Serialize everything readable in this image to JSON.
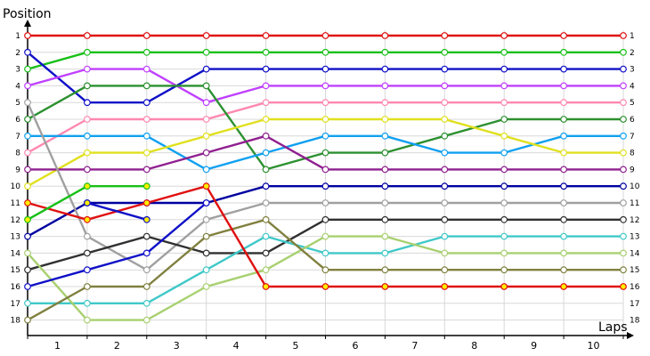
{
  "chart_data": {
    "type": "line",
    "ylabel": "Position",
    "xlabel": "Laps",
    "x_tick_labels": [
      "1",
      "2",
      "3",
      "4",
      "5",
      "6",
      "7",
      "8",
      "9",
      "10"
    ],
    "x_points": [
      0,
      1,
      2,
      3,
      4,
      5,
      6,
      7,
      8,
      9,
      10
    ],
    "y_ticks": [
      1,
      2,
      3,
      4,
      5,
      6,
      7,
      8,
      9,
      10,
      11,
      12,
      13,
      14,
      15,
      16,
      17,
      18
    ],
    "y_inverted": true,
    "ylim": [
      1,
      18
    ],
    "grid": true,
    "legend": "none",
    "series": [
      {
        "color": "#e01010",
        "point_fill": "#ffffff",
        "values": [
          1,
          1,
          1,
          1,
          1,
          1,
          1,
          1,
          1,
          1,
          1
        ]
      },
      {
        "color": "#18c018",
        "point_fill": "#ffffff",
        "values": [
          3,
          2,
          2,
          2,
          2,
          2,
          2,
          2,
          2,
          2,
          2
        ]
      },
      {
        "color": "#1010c8",
        "point_fill": "#ffffff",
        "values": [
          2,
          5,
          5,
          3,
          3,
          3,
          3,
          3,
          3,
          3,
          3
        ]
      },
      {
        "color": "#c040ff",
        "point_fill": "#ffffff",
        "values": [
          4,
          3,
          3,
          5,
          4,
          4,
          4,
          4,
          4,
          4,
          4
        ]
      },
      {
        "color": "#ff88b0",
        "point_fill": "#ffffff",
        "values": [
          8,
          6,
          6,
          6,
          5,
          5,
          5,
          5,
          5,
          5,
          5
        ]
      },
      {
        "color": "#2c9030",
        "point_fill": "#ffffff",
        "values": [
          6,
          4,
          4,
          4,
          9,
          8,
          8,
          7,
          6,
          6,
          6
        ]
      },
      {
        "color": "#10a0f0",
        "point_fill": "#ffffff",
        "values": [
          7,
          7,
          7,
          9,
          8,
          7,
          7,
          8,
          8,
          7,
          7
        ]
      },
      {
        "color": "#e0e020",
        "point_fill": "#ffffff",
        "values": [
          10,
          8,
          8,
          7,
          6,
          6,
          6,
          6,
          7,
          8,
          8
        ]
      },
      {
        "color": "#902090",
        "point_fill": "#ffffff",
        "values": [
          9,
          9,
          9,
          8,
          7,
          9,
          9,
          9,
          9,
          9,
          9
        ]
      },
      {
        "color": "#0000a0",
        "point_fill": "#ffffff",
        "values": [
          13,
          11,
          11,
          11,
          10,
          10,
          10,
          10,
          10,
          10,
          10
        ]
      },
      {
        "color": "#a0a0a0",
        "point_fill": "#ffffff",
        "values": [
          5,
          13,
          15,
          12,
          11,
          11,
          11,
          11,
          11,
          11,
          11
        ]
      },
      {
        "color": "#303030",
        "point_fill": "#ffffff",
        "values": [
          15,
          14,
          13,
          14,
          14,
          12,
          12,
          12,
          12,
          12,
          12
        ]
      },
      {
        "color": "#40c8c8",
        "point_fill": "#ffffff",
        "values": [
          17,
          17,
          17,
          15,
          13,
          14,
          14,
          13,
          13,
          13,
          13
        ]
      },
      {
        "color": "#a8d070",
        "point_fill": "#ffffff",
        "values": [
          14,
          18,
          18,
          16,
          15,
          13,
          13,
          14,
          14,
          14,
          14
        ]
      },
      {
        "color": "#808040",
        "point_fill": "#ffffff",
        "values": [
          18,
          16,
          16,
          13,
          12,
          15,
          15,
          15,
          15,
          15,
          15
        ]
      },
      {
        "color": "#e01010",
        "point_fill": "#ffee00",
        "values": [
          11,
          12,
          11,
          10,
          16,
          16,
          16,
          16,
          16,
          16,
          16
        ]
      },
      {
        "color": "#18c018",
        "point_fill": "#ffee00",
        "values": [
          12,
          10,
          10
        ]
      },
      {
        "color": "#1010c8",
        "point_fill": "#ffffff",
        "values": [
          16,
          15,
          14,
          11
        ]
      },
      {
        "color": "#1010c8",
        "point_fill": "#ffee00",
        "values": [
          null,
          11,
          12
        ]
      }
    ]
  }
}
